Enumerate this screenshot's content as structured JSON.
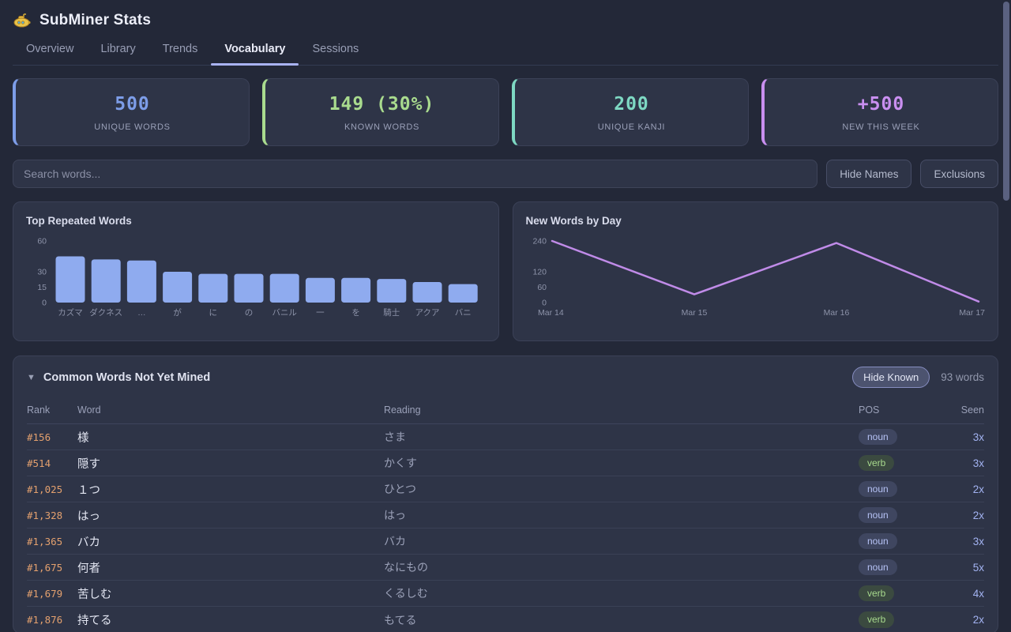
{
  "app": {
    "title": "SubMiner Stats",
    "logo_icon": "yellow-submarine"
  },
  "tabs": [
    {
      "label": "Overview",
      "active": false
    },
    {
      "label": "Library",
      "active": false
    },
    {
      "label": "Trends",
      "active": false
    },
    {
      "label": "Vocabulary",
      "active": true
    },
    {
      "label": "Sessions",
      "active": false
    }
  ],
  "stats": [
    {
      "value": "500",
      "label": "UNIQUE WORDS",
      "color": "#7d9de8"
    },
    {
      "value": "149 (30%)",
      "label": "KNOWN WORDS",
      "color": "#a9db8e"
    },
    {
      "value": "200",
      "label": "UNIQUE KANJI",
      "color": "#7ed8c3"
    },
    {
      "value": "+500",
      "label": "NEW THIS WEEK",
      "color": "#c98ff0"
    }
  ],
  "toolbar": {
    "search_placeholder": "Search words...",
    "hide_names_label": "Hide Names",
    "exclusions_label": "Exclusions"
  },
  "chart_data": [
    {
      "type": "bar",
      "title": "Top Repeated Words",
      "categories": [
        "カズマ",
        "ダクネス",
        "…",
        "が",
        "に",
        "の",
        "バニル",
        "一",
        "を",
        "騎士",
        "アクア",
        "バニ"
      ],
      "values": [
        45,
        42,
        41,
        30,
        28,
        28,
        28,
        24,
        24,
        23,
        20,
        18
      ],
      "yticks": [
        0,
        15,
        30,
        60
      ],
      "ylim": [
        0,
        67
      ],
      "xlabel": "",
      "ylabel": "",
      "grid": false,
      "legend": false,
      "bar_color": "#8fabef"
    },
    {
      "type": "line",
      "title": "New Words by Day",
      "x": [
        "Mar 14",
        "Mar 15",
        "Mar 16",
        "Mar 17"
      ],
      "values": [
        240,
        32,
        232,
        4
      ],
      "yticks": [
        0,
        60,
        120,
        240
      ],
      "ylim": [
        0,
        267
      ],
      "xlabel": "",
      "ylabel": "",
      "grid": false,
      "legend": false,
      "line_color": "#c08be8"
    }
  ],
  "table": {
    "collapse_icon": "▼",
    "section_title": "Common Words Not Yet Mined",
    "hide_known_label": "Hide Known",
    "word_count": "93 words",
    "columns": [
      "Rank",
      "Word",
      "Reading",
      "POS",
      "Seen"
    ],
    "rows": [
      {
        "rank": "#156",
        "word": "様",
        "reading": "さま",
        "pos": "noun",
        "seen": "3x"
      },
      {
        "rank": "#514",
        "word": "隠す",
        "reading": "かくす",
        "pos": "verb",
        "seen": "3x"
      },
      {
        "rank": "#1,025",
        "word": "１つ",
        "reading": "ひとつ",
        "pos": "noun",
        "seen": "2x"
      },
      {
        "rank": "#1,328",
        "word": "はっ",
        "reading": "はっ",
        "pos": "noun",
        "seen": "2x"
      },
      {
        "rank": "#1,365",
        "word": "バカ",
        "reading": "バカ",
        "pos": "noun",
        "seen": "3x"
      },
      {
        "rank": "#1,675",
        "word": "何者",
        "reading": "なにもの",
        "pos": "noun",
        "seen": "5x"
      },
      {
        "rank": "#1,679",
        "word": "苦しむ",
        "reading": "くるしむ",
        "pos": "verb",
        "seen": "4x"
      },
      {
        "rank": "#1,876",
        "word": "持てる",
        "reading": "もてる",
        "pos": "verb",
        "seen": "2x"
      }
    ]
  }
}
